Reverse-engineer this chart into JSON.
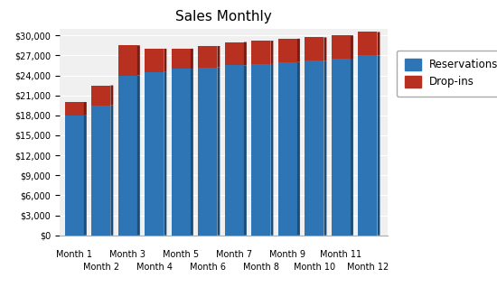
{
  "title": "Sales Monthly",
  "categories": [
    "Month 1",
    "Month 2",
    "Month 3",
    "Month 4",
    "Month 5",
    "Month 6",
    "Month 7",
    "Month 8",
    "Month 9",
    "Month 10",
    "Month 11",
    "Month 12"
  ],
  "reservations": [
    18000,
    19500,
    24000,
    24500,
    25000,
    25200,
    25500,
    25700,
    26000,
    26200,
    26500,
    27000
  ],
  "dropins": [
    2000,
    3000,
    4500,
    3500,
    3000,
    3200,
    3500,
    3500,
    3500,
    3500,
    3500,
    3500
  ],
  "bar_color_reservations": "#2E75B6",
  "bar_color_reservations_dark": "#1A4D7A",
  "bar_color_reservations_top": "#3A8FD9",
  "bar_color_dropins": "#B83020",
  "bar_color_dropins_dark": "#7A1A10",
  "bar_color_dropins_top": "#C84030",
  "background_color": "#FFFFFF",
  "plot_bg_color": "#F0F0F0",
  "grid_color": "#FFFFFF",
  "ylim": [
    0,
    31000
  ],
  "yticks": [
    0,
    3000,
    6000,
    9000,
    12000,
    15000,
    18000,
    21000,
    24000,
    27000,
    30000
  ],
  "title_fontsize": 11,
  "tick_fontsize": 7,
  "legend_fontsize": 8.5
}
